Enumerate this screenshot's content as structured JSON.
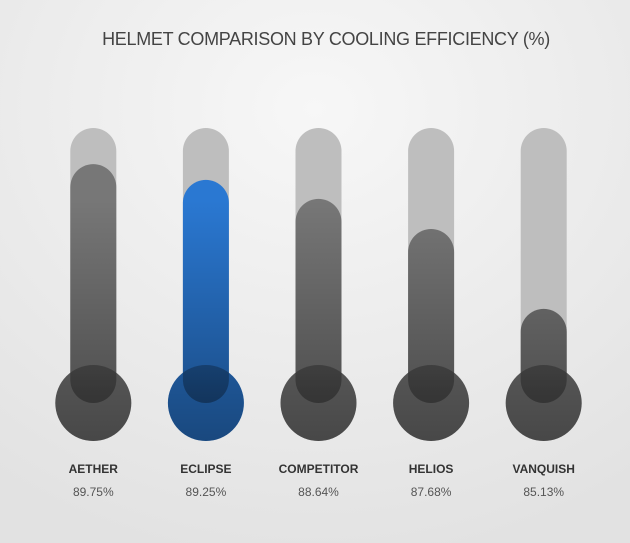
{
  "chart_data": {
    "type": "thermometer",
    "title": "HELMET COMPARISON BY COOLING EFFICIENCY (%)",
    "categories": [
      "AETHER",
      "ECLIPSE",
      "COMPETITOR",
      "HELIOS",
      "VANQUISH"
    ],
    "values": [
      89.75,
      89.25,
      88.64,
      87.68,
      85.13
    ],
    "value_labels": [
      "89.75%",
      "89.25%",
      "88.64%",
      "87.68%",
      "85.13%"
    ],
    "colors": [
      "#777777",
      "#2a78d2",
      "#777777",
      "#777777",
      "#777777"
    ],
    "track_color": "#bebebe"
  }
}
